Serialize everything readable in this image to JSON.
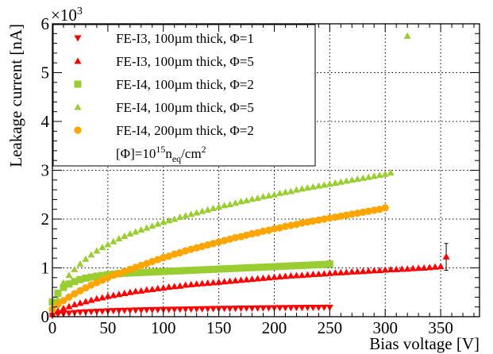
{
  "chart_data": {
    "type": "scatter",
    "title": "",
    "xlabel": "Bias voltage [V]",
    "ylabel": "Leakage current [nA]",
    "y_multiplier_label": {
      "base": "×10",
      "exponent": "3"
    },
    "xlim": [
      0,
      385
    ],
    "ylim": [
      0,
      6
    ],
    "x_ticks": [
      0,
      50,
      100,
      150,
      200,
      250,
      300,
      350
    ],
    "y_ticks": [
      0,
      1,
      2,
      3,
      4,
      5,
      6
    ],
    "grid": true,
    "legend_position": "top-left",
    "legend_note": {
      "prefix": "[Φ]=10",
      "exp": "15",
      "unit": "n",
      "sub": "eq",
      "suffix": "/cm",
      "sup2": "2"
    },
    "series": [
      {
        "name": "FE-I3, 100µm thick, Φ=1",
        "color": "#ff0000",
        "marker": "triangle-down",
        "x": [
          0,
          5,
          10,
          15,
          20,
          25,
          30,
          35,
          40,
          45,
          50,
          55,
          60,
          65,
          70,
          75,
          80,
          85,
          90,
          95,
          100,
          105,
          110,
          115,
          120,
          125,
          130,
          135,
          140,
          145,
          150,
          155,
          160,
          165,
          170,
          175,
          180,
          185,
          190,
          195,
          200,
          205,
          210,
          215,
          220,
          225,
          230,
          235,
          240,
          245,
          250
        ],
        "y": [
          0.02,
          0.05,
          0.06,
          0.07,
          0.08,
          0.09,
          0.095,
          0.1,
          0.105,
          0.11,
          0.115,
          0.12,
          0.123,
          0.126,
          0.129,
          0.132,
          0.135,
          0.138,
          0.14,
          0.142,
          0.145,
          0.147,
          0.149,
          0.151,
          0.153,
          0.155,
          0.157,
          0.159,
          0.161,
          0.162,
          0.164,
          0.166,
          0.167,
          0.169,
          0.17,
          0.172,
          0.173,
          0.174,
          0.176,
          0.177,
          0.178,
          0.18,
          0.181,
          0.182,
          0.183,
          0.184,
          0.186,
          0.187,
          0.188,
          0.189,
          0.19
        ]
      },
      {
        "name": "FE-I3, 100µm thick, Φ=5",
        "color": "#ff0000",
        "marker": "triangle-up",
        "x": [
          0,
          5,
          10,
          15,
          20,
          25,
          30,
          35,
          40,
          45,
          50,
          55,
          60,
          65,
          70,
          75,
          80,
          85,
          90,
          95,
          100,
          105,
          110,
          115,
          120,
          125,
          130,
          135,
          140,
          145,
          150,
          155,
          160,
          165,
          170,
          175,
          180,
          185,
          190,
          195,
          200,
          205,
          210,
          215,
          220,
          225,
          230,
          235,
          240,
          245,
          250,
          255,
          260,
          265,
          270,
          275,
          280,
          285,
          290,
          295,
          300,
          305,
          310,
          315,
          320,
          325,
          330,
          335,
          340,
          345,
          350,
          355
        ],
        "y": [
          0.05,
          0.12,
          0.17,
          0.21,
          0.25,
          0.28,
          0.31,
          0.34,
          0.37,
          0.39,
          0.42,
          0.44,
          0.46,
          0.48,
          0.5,
          0.52,
          0.53,
          0.55,
          0.56,
          0.58,
          0.59,
          0.61,
          0.62,
          0.63,
          0.65,
          0.66,
          0.67,
          0.68,
          0.69,
          0.7,
          0.71,
          0.72,
          0.73,
          0.74,
          0.75,
          0.76,
          0.77,
          0.78,
          0.79,
          0.8,
          0.81,
          0.82,
          0.83,
          0.84,
          0.845,
          0.85,
          0.86,
          0.87,
          0.875,
          0.88,
          0.89,
          0.9,
          0.905,
          0.91,
          0.92,
          0.925,
          0.93,
          0.94,
          0.945,
          0.95,
          0.96,
          0.965,
          0.97,
          0.975,
          0.98,
          0.99,
          0.995,
          1.0,
          1.01,
          1.02,
          1.03,
          1.23
        ],
        "error_bar": {
          "x": 355,
          "y_low": 0.95,
          "y_high": 1.5
        }
      },
      {
        "name": "FE-I4, 100µm thick, Φ=2",
        "color": "#9acd32",
        "marker": "square",
        "x": [
          0,
          5,
          10,
          15,
          20,
          25,
          30,
          35,
          40,
          45,
          50,
          55,
          60,
          65,
          70,
          75,
          80,
          85,
          90,
          95,
          100,
          105,
          110,
          115,
          120,
          125,
          130,
          135,
          140,
          145,
          150,
          155,
          160,
          165,
          170,
          175,
          180,
          185,
          190,
          195,
          200,
          205,
          210,
          215,
          220,
          225,
          230,
          235,
          240,
          245,
          250
        ],
        "y": [
          0.3,
          0.48,
          0.6,
          0.67,
          0.72,
          0.76,
          0.79,
          0.81,
          0.83,
          0.845,
          0.86,
          0.87,
          0.88,
          0.89,
          0.895,
          0.9,
          0.905,
          0.91,
          0.915,
          0.92,
          0.925,
          0.93,
          0.935,
          0.94,
          0.945,
          0.95,
          0.955,
          0.96,
          0.965,
          0.97,
          0.975,
          0.98,
          0.985,
          0.99,
          0.995,
          1.0,
          1.005,
          1.01,
          1.015,
          1.02,
          1.025,
          1.03,
          1.035,
          1.04,
          1.045,
          1.05,
          1.055,
          1.06,
          1.065,
          1.07,
          1.08
        ]
      },
      {
        "name": "FE-I4, 100µm thick, Φ=5",
        "color": "#9acd32",
        "marker": "triangle-up",
        "x": [
          5,
          10,
          15,
          20,
          25,
          30,
          35,
          40,
          45,
          50,
          55,
          60,
          65,
          70,
          75,
          80,
          85,
          90,
          95,
          100,
          105,
          110,
          115,
          120,
          125,
          130,
          135,
          140,
          145,
          150,
          155,
          160,
          165,
          170,
          175,
          180,
          185,
          190,
          195,
          200,
          205,
          210,
          215,
          220,
          225,
          230,
          235,
          240,
          245,
          250,
          255,
          260,
          265,
          270,
          275,
          280,
          285,
          290,
          295,
          300,
          305,
          320
        ],
        "y": [
          0.35,
          0.7,
          0.85,
          0.97,
          1.08,
          1.18,
          1.27,
          1.35,
          1.42,
          1.48,
          1.54,
          1.6,
          1.65,
          1.7,
          1.74,
          1.78,
          1.82,
          1.86,
          1.9,
          1.94,
          1.97,
          2.0,
          2.04,
          2.07,
          2.1,
          2.13,
          2.16,
          2.19,
          2.22,
          2.25,
          2.28,
          2.3,
          2.33,
          2.36,
          2.38,
          2.41,
          2.43,
          2.46,
          2.48,
          2.5,
          2.53,
          2.55,
          2.57,
          2.6,
          2.62,
          2.64,
          2.66,
          2.68,
          2.7,
          2.72,
          2.74,
          2.76,
          2.78,
          2.8,
          2.82,
          2.84,
          2.86,
          2.88,
          2.9,
          2.92,
          2.95,
          5.75
        ]
      },
      {
        "name": "FE-I4, 200µm thick, Φ=2",
        "color": "#ffa500",
        "marker": "circle",
        "x": [
          0,
          5,
          10,
          15,
          20,
          25,
          30,
          35,
          40,
          45,
          50,
          55,
          60,
          65,
          70,
          75,
          80,
          85,
          90,
          95,
          100,
          105,
          110,
          115,
          120,
          125,
          130,
          135,
          140,
          145,
          150,
          155,
          160,
          165,
          170,
          175,
          180,
          185,
          190,
          195,
          200,
          205,
          210,
          215,
          220,
          225,
          230,
          235,
          240,
          245,
          250,
          255,
          260,
          265,
          270,
          275,
          280,
          285,
          290,
          295,
          300
        ],
        "y": [
          0.15,
          0.25,
          0.33,
          0.4,
          0.47,
          0.53,
          0.59,
          0.65,
          0.7,
          0.75,
          0.8,
          0.85,
          0.89,
          0.93,
          0.97,
          1.01,
          1.05,
          1.09,
          1.13,
          1.17,
          1.21,
          1.24,
          1.28,
          1.31,
          1.35,
          1.38,
          1.41,
          1.44,
          1.47,
          1.5,
          1.53,
          1.56,
          1.59,
          1.62,
          1.64,
          1.67,
          1.7,
          1.72,
          1.75,
          1.77,
          1.8,
          1.82,
          1.85,
          1.87,
          1.89,
          1.92,
          1.94,
          1.96,
          1.98,
          2.0,
          2.02,
          2.04,
          2.06,
          2.08,
          2.1,
          2.12,
          2.14,
          2.16,
          2.18,
          2.2,
          2.23
        ]
      }
    ]
  }
}
